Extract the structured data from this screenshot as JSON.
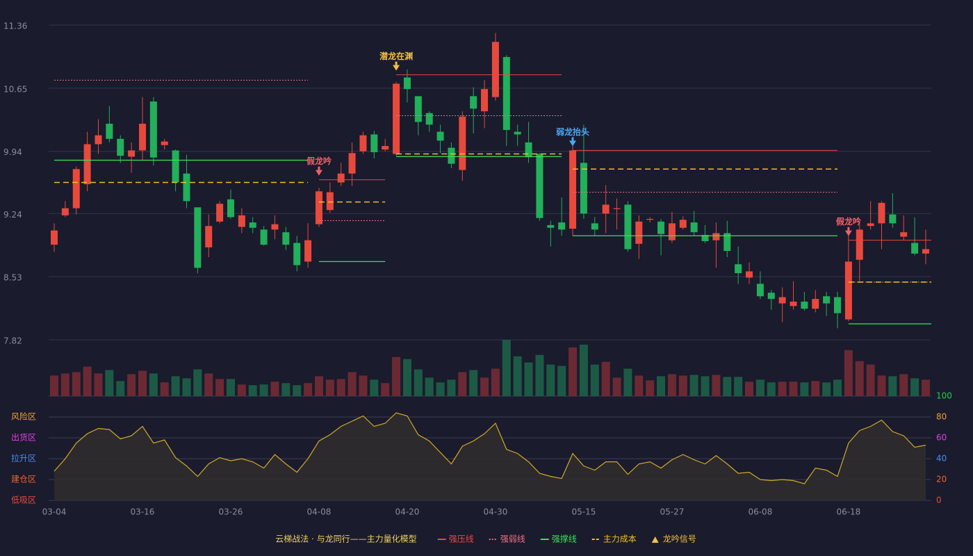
{
  "chart_data": {
    "type": "candlestick",
    "categories": [
      "03-04",
      null,
      null,
      null,
      null,
      null,
      null,
      null,
      "03-16",
      null,
      null,
      null,
      null,
      null,
      null,
      null,
      "03-26",
      null,
      null,
      null,
      null,
      null,
      null,
      null,
      "04-08",
      null,
      null,
      null,
      null,
      null,
      null,
      null,
      "04-20",
      null,
      null,
      null,
      null,
      null,
      null,
      null,
      "04-30",
      null,
      null,
      null,
      null,
      null,
      null,
      null,
      "05-15",
      null,
      null,
      null,
      null,
      null,
      null,
      null,
      "05-27",
      null,
      null,
      null,
      null,
      null,
      null,
      null,
      "06-08",
      null,
      null,
      null,
      null,
      null,
      null,
      null,
      "06-18",
      null,
      null,
      null,
      null,
      null,
      null,
      null
    ],
    "ylim": [
      7.82,
      11.36
    ],
    "yticks": [
      11.36,
      10.65,
      9.94,
      9.24,
      8.53,
      7.82
    ],
    "up_color": "#e8493d",
    "down_color": "#22b05a",
    "volume_up_color": "#6b2a33",
    "volume_down_color": "#1d5a45",
    "candles": {
      "open": [
        8.89,
        9.22,
        9.3,
        9.57,
        10.02,
        10.25,
        10.08,
        9.88,
        9.95,
        10.5,
        10.01,
        9.95,
        9.69,
        9.31,
        8.86,
        9.15,
        9.4,
        9.09,
        9.14,
        9.06,
        9.06,
        9.03,
        8.91,
        8.7,
        9.12,
        9.28,
        9.59,
        9.69,
        9.94,
        10.13,
        9.96,
        9.91,
        10.77,
        10.56,
        10.37,
        10.16,
        9.98,
        9.73,
        10.56,
        10.39,
        10.55,
        11.0,
        10.16,
        10.04,
        9.91,
        9.11,
        9.14,
        9.07,
        9.81,
        9.13,
        9.24,
        9.29,
        9.34,
        8.9,
        9.17,
        9.15,
        8.94,
        9.08,
        9.14,
        9.0,
        8.94,
        9.02,
        8.67,
        8.52,
        8.45,
        8.35,
        8.23,
        8.2,
        8.25,
        8.17,
        8.31,
        8.3,
        8.05,
        8.72,
        9.1,
        9.13,
        9.23,
        8.98,
        8.91,
        8.79
      ],
      "high": [
        9.13,
        9.38,
        9.77,
        10.16,
        10.3,
        10.45,
        10.12,
        10.04,
        10.55,
        10.55,
        10.08,
        9.96,
        9.9,
        9.31,
        9.23,
        9.38,
        9.51,
        9.3,
        9.2,
        9.1,
        9.22,
        9.09,
        8.99,
        9.13,
        9.53,
        9.59,
        9.81,
        10.04,
        10.16,
        10.17,
        10.08,
        10.72,
        10.86,
        10.56,
        10.39,
        10.24,
        10.04,
        10.39,
        10.66,
        10.74,
        11.27,
        11.02,
        10.24,
        10.27,
        9.92,
        9.16,
        9.42,
        10.04,
        10.24,
        9.2,
        9.56,
        9.41,
        9.38,
        9.22,
        9.2,
        9.18,
        9.26,
        9.21,
        9.27,
        9.11,
        9.14,
        9.16,
        8.87,
        8.69,
        8.59,
        8.38,
        8.41,
        8.48,
        8.36,
        8.38,
        8.36,
        8.36,
        9.06,
        9.14,
        9.38,
        9.38,
        9.47,
        9.22,
        9.2,
        9.06
      ],
      "low": [
        8.81,
        9.2,
        9.23,
        9.49,
        9.91,
        10.04,
        9.81,
        9.7,
        9.84,
        9.78,
        9.96,
        9.49,
        9.3,
        8.57,
        8.75,
        9.13,
        9.18,
        9.02,
        9.02,
        8.88,
        8.95,
        8.83,
        8.59,
        8.63,
        9.09,
        9.25,
        9.55,
        9.55,
        9.91,
        9.86,
        9.94,
        9.89,
        10.49,
        10.12,
        10.16,
        9.92,
        9.75,
        9.61,
        10.14,
        10.2,
        10.51,
        10.0,
        10.0,
        9.81,
        9.16,
        8.87,
        8.99,
        8.99,
        9.18,
        8.99,
        9.02,
        9.06,
        8.81,
        8.73,
        9.14,
        8.77,
        8.91,
        9.06,
        8.99,
        8.91,
        8.63,
        8.75,
        8.45,
        8.45,
        8.28,
        8.16,
        8.02,
        8.16,
        8.15,
        8.13,
        8.09,
        7.95,
        8.03,
        8.48,
        9.06,
        8.84,
        9.08,
        8.94,
        8.77,
        8.67
      ],
      "close": [
        9.05,
        9.3,
        9.74,
        10.02,
        10.12,
        10.08,
        9.89,
        9.95,
        10.25,
        9.87,
        10.05,
        9.59,
        9.38,
        8.63,
        9.1,
        9.35,
        9.2,
        9.22,
        9.08,
        8.89,
        9.12,
        8.89,
        8.66,
        8.94,
        9.49,
        9.48,
        9.69,
        9.92,
        10.12,
        9.93,
        10.0,
        10.7,
        10.64,
        10.27,
        10.24,
        10.06,
        9.8,
        10.33,
        10.42,
        10.64,
        11.17,
        10.18,
        10.13,
        9.88,
        9.19,
        9.08,
        9.06,
        9.95,
        9.24,
        9.06,
        9.34,
        9.3,
        8.84,
        9.15,
        9.18,
        9.01,
        9.13,
        9.17,
        9.03,
        8.93,
        9.02,
        8.82,
        8.57,
        8.59,
        8.31,
        8.28,
        8.3,
        8.25,
        8.17,
        8.28,
        8.23,
        8.12,
        8.7,
        9.06,
        9.13,
        9.36,
        9.13,
        9.03,
        8.79,
        8.84
      ]
    },
    "volume": [
      30,
      33,
      35,
      43,
      33,
      38,
      22,
      32,
      37,
      33,
      20,
      29,
      26,
      39,
      33,
      25,
      25,
      17,
      16,
      17,
      21,
      19,
      16,
      19,
      29,
      24,
      25,
      35,
      30,
      24,
      19,
      57,
      54,
      39,
      27,
      20,
      24,
      35,
      38,
      27,
      40,
      82,
      58,
      49,
      60,
      46,
      44,
      71,
      75,
      46,
      50,
      27,
      40,
      30,
      23,
      29,
      32,
      30,
      31,
      29,
      31,
      28,
      28,
      21,
      24,
      20,
      21,
      21,
      20,
      22,
      20,
      24,
      67,
      51,
      46,
      30,
      29,
      32,
      26,
      24
    ],
    "levels": [
      {
        "from": 0,
        "to": 23,
        "weak": 10.74,
        "cost": 9.59,
        "support": 9.84
      },
      {
        "from": 24,
        "to": 30,
        "pressure": 9.62,
        "weak": 9.16,
        "cost": 9.37,
        "support": 8.7,
        "signal": {
          "label": "假龙吟",
          "color": "#f0606a"
        }
      },
      {
        "from": 31,
        "to": 46,
        "pressure": 10.8,
        "weak": 10.34,
        "cost": 9.91,
        "support": 9.88,
        "signal": {
          "label": "潜龙在渊",
          "color": "#f0c040"
        }
      },
      {
        "from": 47,
        "to": 71,
        "pressure": 9.95,
        "weak": 9.48,
        "cost": 9.74,
        "support": 8.99,
        "signal": {
          "label": "弱龙抬头",
          "color": "#4aa8f0"
        }
      },
      {
        "from": 72,
        "to": 79,
        "pressure": 8.94,
        "weak": 8.47,
        "cost": 8.47,
        "support": 8.0,
        "signal": {
          "label": "假龙吟",
          "color": "#f0606a"
        }
      }
    ],
    "oscillator": {
      "values": [
        28,
        40,
        55,
        64,
        69,
        68,
        59,
        62,
        71,
        55,
        58,
        41,
        33,
        23,
        35,
        41,
        38,
        40,
        37,
        31,
        44,
        35,
        27,
        40,
        57,
        63,
        71,
        76,
        81,
        71,
        74,
        84,
        81,
        63,
        57,
        46,
        35,
        52,
        57,
        64,
        74,
        49,
        45,
        37,
        26,
        23,
        21,
        45,
        33,
        29,
        37,
        37,
        25,
        35,
        37,
        31,
        39,
        44,
        39,
        35,
        43,
        35,
        26,
        27,
        20,
        19,
        20,
        19,
        16,
        31,
        29,
        23,
        55,
        67,
        71,
        77,
        66,
        62,
        51,
        53
      ],
      "color": "#d4a928",
      "ylim": [
        0,
        100
      ],
      "yticks": [
        0,
        20,
        40,
        60,
        80,
        100
      ],
      "ytick_colors": [
        "#e8493d",
        "#e8642f",
        "#4a8cf0",
        "#e040e0",
        "#f0a030",
        "#22d04a"
      ],
      "zones": [
        {
          "value": 80,
          "label": "风险区",
          "color": "#f0a030"
        },
        {
          "value": 60,
          "label": "出货区",
          "color": "#e040e0"
        },
        {
          "value": 40,
          "label": "拉升区",
          "color": "#4a8cf0"
        },
        {
          "value": 20,
          "label": "建仓区",
          "color": "#e8642f"
        },
        {
          "value": 0,
          "label": "低吸区",
          "color": "#e8493d"
        }
      ]
    },
    "legend": {
      "title": "云梯战法 · 与龙同行——主力量化模型",
      "title_color": "#f0d060",
      "items": [
        {
          "label": "强压线",
          "color": "#e8493d",
          "style": "solid"
        },
        {
          "label": "强弱线",
          "color": "#f07080",
          "style": "dotted"
        },
        {
          "label": "强撑线",
          "color": "#3fdf5a",
          "style": "solid"
        },
        {
          "label": "主力成本",
          "color": "#f0c020",
          "style": "dashed"
        },
        {
          "label": "龙吟信号",
          "color": "#f0c040",
          "style": "triangle"
        }
      ]
    }
  }
}
